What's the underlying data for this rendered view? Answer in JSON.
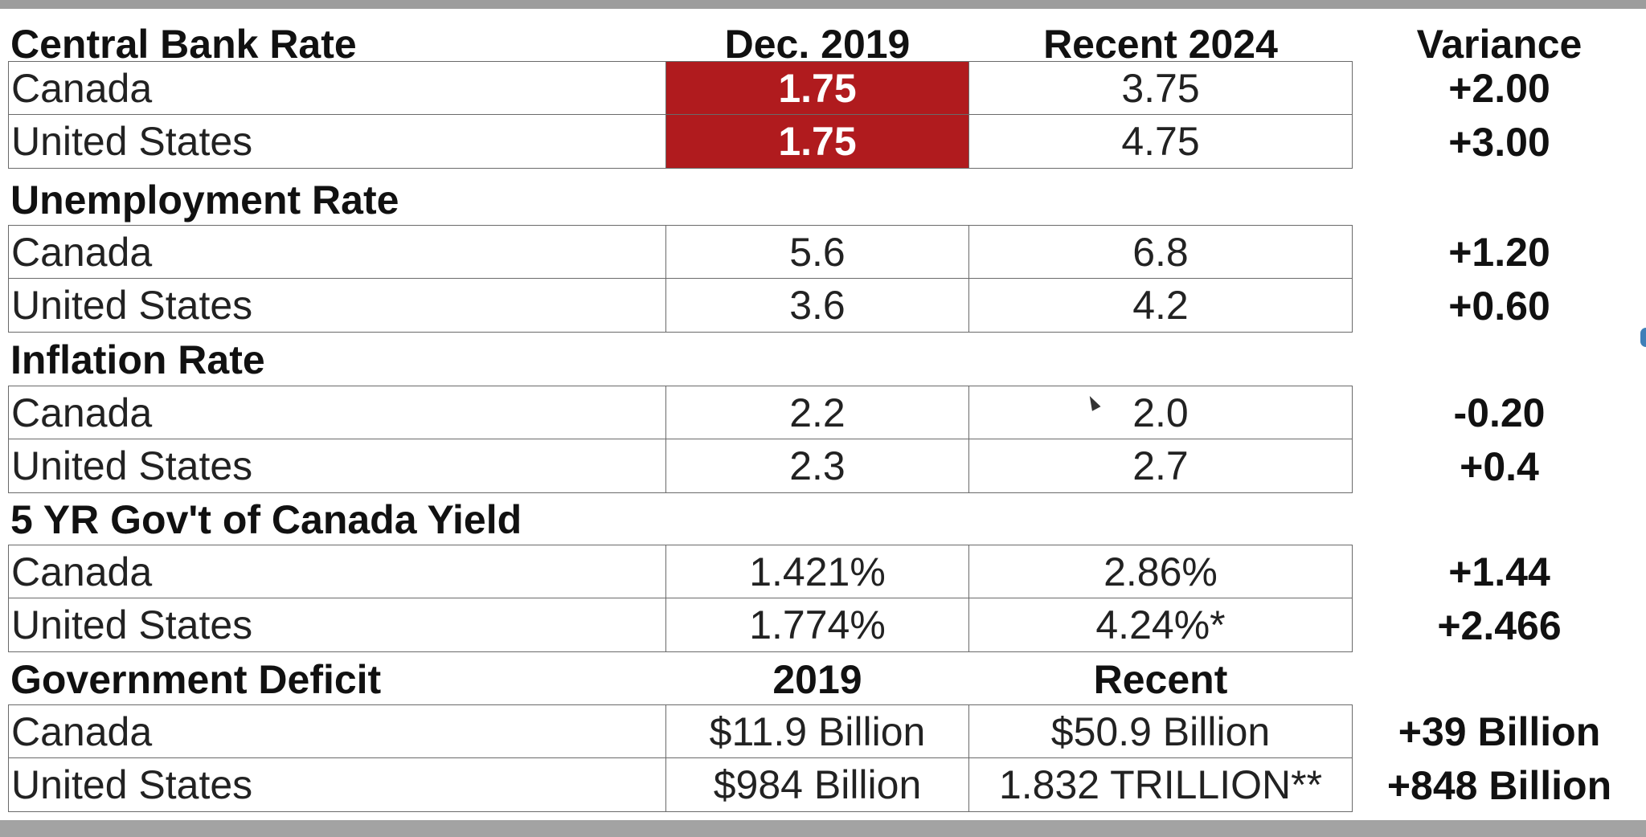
{
  "sections": [
    {
      "title": "Central Bank Rate",
      "col_2019": "Dec. 2019",
      "col_recent": "Recent 2024",
      "col_variance": "Variance",
      "rows": [
        {
          "country": "Canada",
          "v2019": "1.75",
          "vrecent": "3.75",
          "variance": "+2.00"
        },
        {
          "country": "United States",
          "v2019": "1.75",
          "vrecent": "4.75",
          "variance": "+3.00"
        }
      ]
    },
    {
      "title": "Unemployment Rate",
      "rows": [
        {
          "country": "Canada",
          "v2019": "5.6",
          "vrecent": "6.8",
          "variance": "+1.20"
        },
        {
          "country": "United States",
          "v2019": "3.6",
          "vrecent": "4.2",
          "variance": "+0.60"
        }
      ]
    },
    {
      "title": "Inflation Rate",
      "rows": [
        {
          "country": "Canada",
          "v2019": "2.2",
          "vrecent": "2.0",
          "variance": "-0.20"
        },
        {
          "country": "United States",
          "v2019": "2.3",
          "vrecent": "2.7",
          "variance": "+0.4"
        }
      ]
    },
    {
      "title": "5 YR Gov't of Canada Yield",
      "rows": [
        {
          "country": "Canada",
          "v2019": "1.421%",
          "vrecent": "2.86%",
          "variance": "+1.44"
        },
        {
          "country": "United States",
          "v2019": "1.774%",
          "vrecent": "4.24%*",
          "variance": "+2.466"
        }
      ]
    },
    {
      "title": "Government Deficit",
      "col_2019": "2019",
      "col_recent": "Recent",
      "rows": [
        {
          "country": "Canada",
          "v2019": "$11.9 Billion",
          "vrecent": "$50.9 Billion",
          "variance": "+39 Billion"
        },
        {
          "country": "United States",
          "v2019": "$984 Billion",
          "vrecent": "1.832 TRILLION**",
          "variance": "+848 Billion"
        }
      ]
    }
  ],
  "colors": {
    "highlight": "#b01b1e",
    "frame": "#9d9d9d",
    "border": "#6a6a6a"
  },
  "highlighted_cells": [
    "sections.0.rows.0.v2019",
    "sections.0.rows.1.v2019"
  ]
}
